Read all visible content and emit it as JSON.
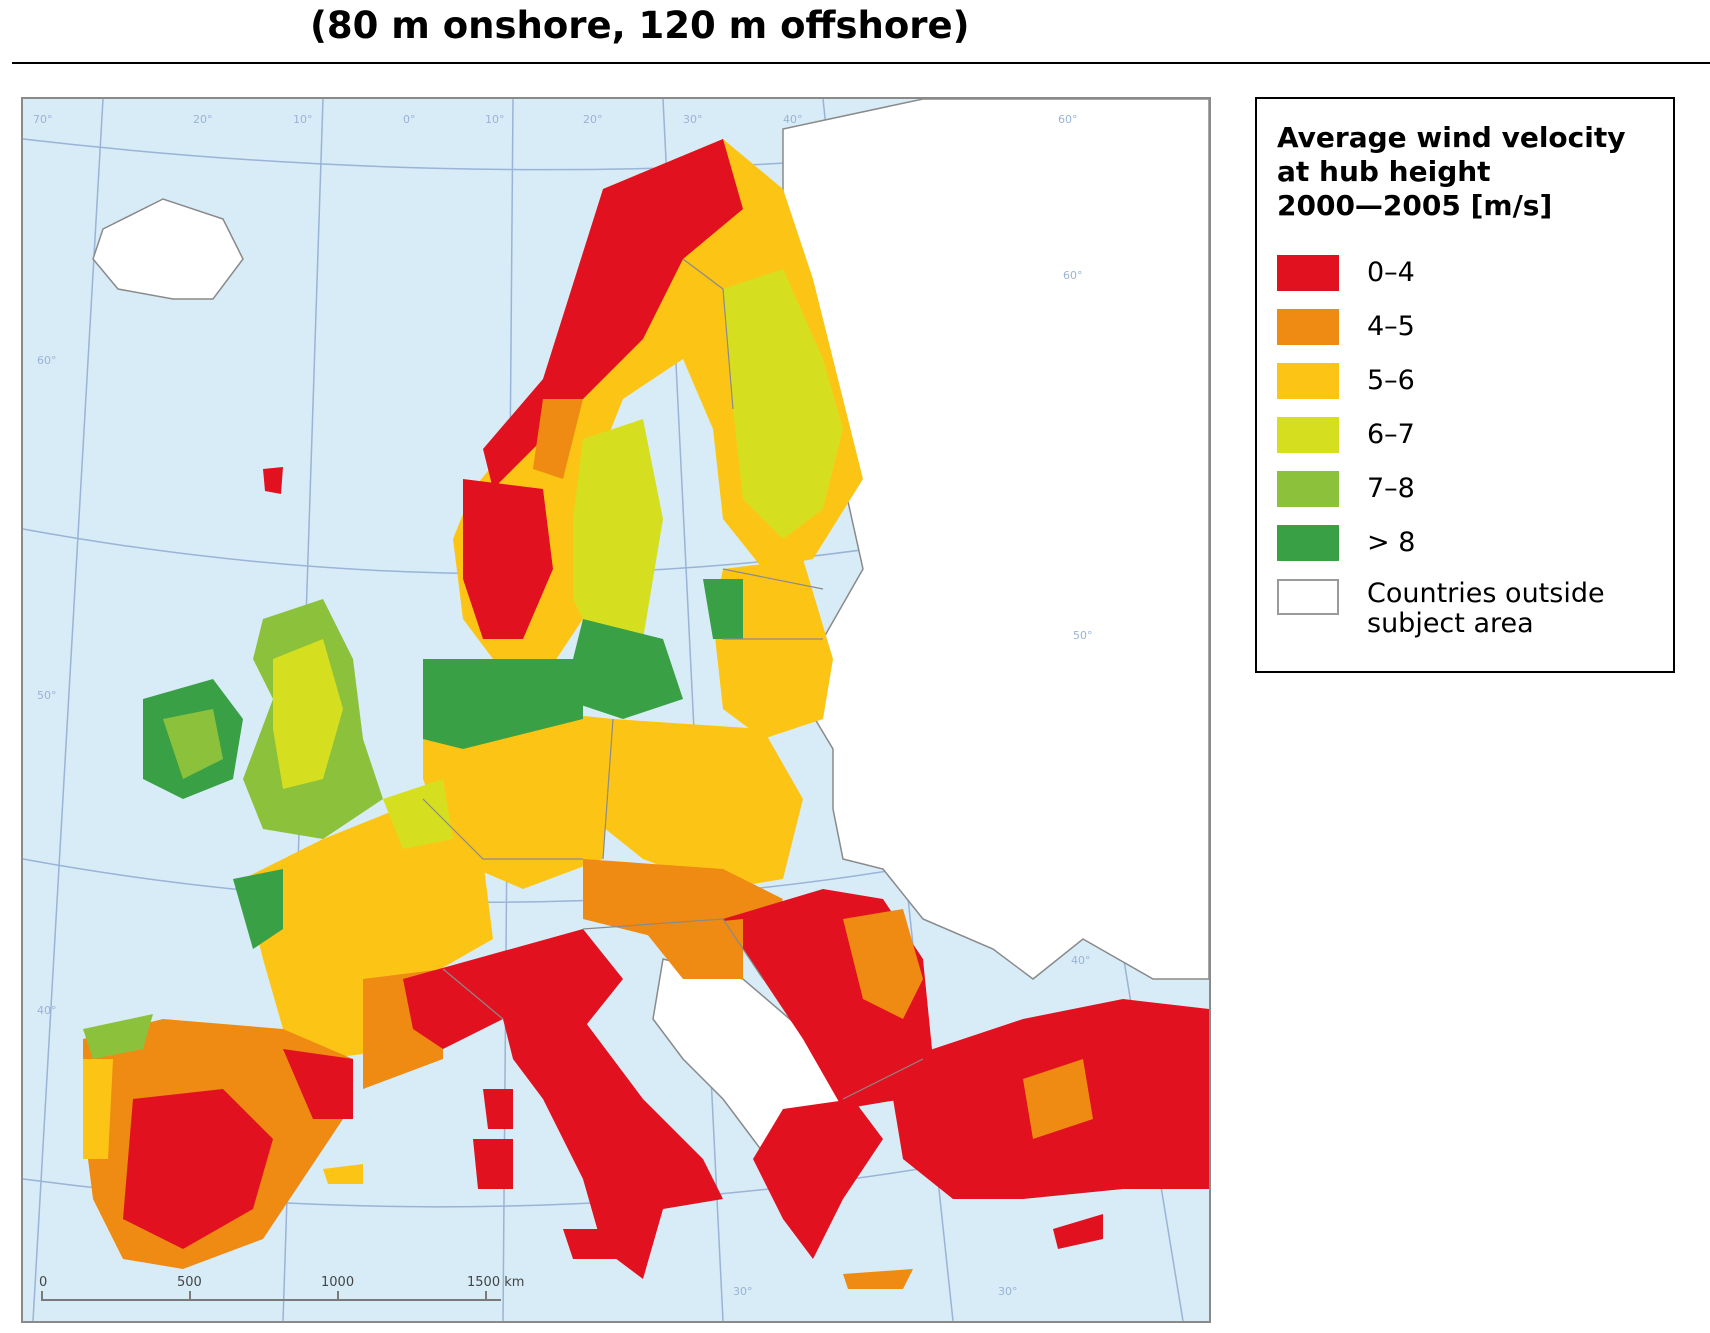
{
  "header": {
    "subtitle": "(80 m onshore, 120 m offshore)"
  },
  "map": {
    "graticule_labels": [
      "20°",
      "10°",
      "0°",
      "10°",
      "20°",
      "30°",
      "40°",
      "60°",
      "70°",
      "60°",
      "60°",
      "50°",
      "50°",
      "40°",
      "40°",
      "30°",
      "30°"
    ],
    "scale_bar": {
      "labels": [
        "0",
        "500",
        "1000",
        "1500 km"
      ]
    },
    "colors": {
      "sea": "#d7ecf7",
      "outside": "#ffffff",
      "boundary": "#8a8a8a",
      "grid": "#9ab3d6"
    }
  },
  "legend": {
    "title_lines": [
      "Average wind velocity",
      "at hub height",
      "2000—2005 [m/s]"
    ],
    "items": [
      {
        "label": "0–4",
        "color": "#e2111f"
      },
      {
        "label": "4–5",
        "color": "#ef8a12"
      },
      {
        "label": "5–6",
        "color": "#fcc515"
      },
      {
        "label": "6–7",
        "color": "#d6df1f"
      },
      {
        "label": "7–8",
        "color": "#8cc13c"
      },
      {
        "label": "> 8",
        "color": "#3aa045"
      }
    ],
    "outside": {
      "label_lines": [
        "Countries outside",
        "subject area"
      ],
      "color": "#ffffff"
    }
  }
}
